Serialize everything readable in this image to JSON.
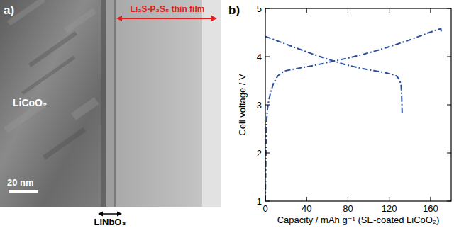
{
  "chart_data": {
    "type": "line",
    "panel_label": "b)",
    "x_label": "Capacity / mAh g⁻¹ (SE-coated LiCoO₂)",
    "y_label": "Cell voltage / V",
    "xlim": [
      0,
      180
    ],
    "xticks": [
      0,
      40,
      80,
      120,
      160
    ],
    "ylim": [
      1,
      5
    ],
    "yticks": [
      1,
      2,
      3,
      4,
      5
    ],
    "grid": false,
    "series": [
      {
        "color": "#2b4ea2",
        "line_style": "dashdot",
        "x": [
          0,
          0.5,
          1,
          2,
          3,
          5,
          8,
          12,
          18,
          25,
          35,
          50,
          65,
          80,
          95,
          110,
          125,
          140,
          155,
          165,
          170,
          170.5
        ],
        "values": [
          1.0,
          1.8,
          2.6,
          2.9,
          3.05,
          3.25,
          3.45,
          3.6,
          3.7,
          3.73,
          3.77,
          3.83,
          3.9,
          3.97,
          4.05,
          4.14,
          4.24,
          4.35,
          4.47,
          4.55,
          4.58,
          4.5
        ]
      },
      {
        "color": "#2b4ea2",
        "line_style": "dashdot",
        "x": [
          0,
          5,
          15,
          30,
          45,
          60,
          75,
          90,
          105,
          115,
          122,
          127,
          130,
          131.5,
          132,
          132.3,
          132.5
        ],
        "values": [
          4.42,
          4.38,
          4.3,
          4.18,
          4.06,
          3.95,
          3.85,
          3.77,
          3.71,
          3.67,
          3.64,
          3.6,
          3.52,
          3.4,
          3.2,
          3.0,
          2.8
        ]
      }
    ]
  },
  "micrograph": {
    "panel_label": "a)",
    "material_label": "LiCoO₂",
    "film_label": "Li₂S-P₂S₅ thin film",
    "scale_bar": "20 nm",
    "coating_label": "LiNbO₃"
  }
}
